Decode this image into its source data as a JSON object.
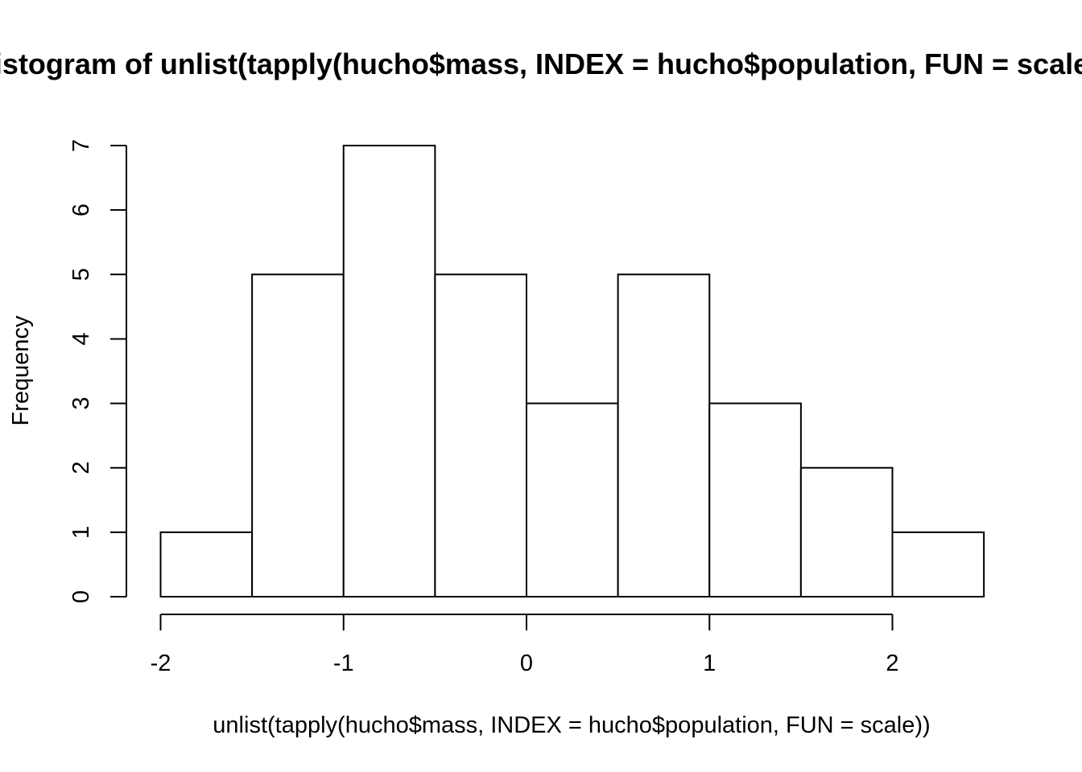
{
  "chart_data": {
    "type": "bar",
    "title": "Histogram of unlist(tapply(hucho$mass, INDEX = hucho$population, FUN = scale))",
    "xlabel": "unlist(tapply(hucho$mass, INDEX = hucho$population, FUN = scale))",
    "ylabel": "Frequency",
    "bins": [
      {
        "from": -2.0,
        "to": -1.5,
        "count": 1
      },
      {
        "from": -1.5,
        "to": -1.0,
        "count": 5
      },
      {
        "from": -1.0,
        "to": -0.5,
        "count": 7
      },
      {
        "from": -0.5,
        "to": 0.0,
        "count": 5
      },
      {
        "from": 0.0,
        "to": 0.5,
        "count": 3
      },
      {
        "from": 0.5,
        "to": 1.0,
        "count": 5
      },
      {
        "from": 1.0,
        "to": 1.5,
        "count": 3
      },
      {
        "from": 1.5,
        "to": 2.0,
        "count": 2
      },
      {
        "from": 2.0,
        "to": 2.5,
        "count": 1
      }
    ],
    "x_ticks": [
      -2,
      -1,
      0,
      1,
      2
    ],
    "y_ticks": [
      0,
      1,
      2,
      3,
      4,
      5,
      6,
      7
    ],
    "xlim": [
      -2,
      2
    ],
    "ylim": [
      0,
      7
    ],
    "bar_fill": "#ffffff",
    "bar_stroke": "#000000",
    "grid": false,
    "legend": "none"
  }
}
